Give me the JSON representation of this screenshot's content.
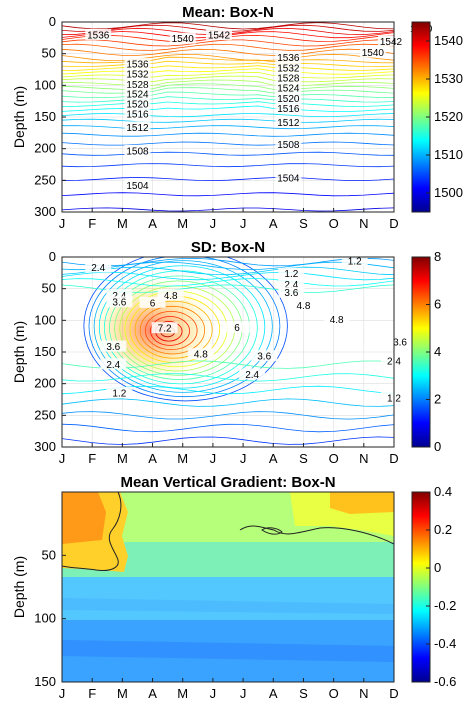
{
  "chart_data": [
    {
      "type": "contour",
      "title": "Mean: Box-N",
      "ylabel": "Depth (m)",
      "xlabel": "",
      "x_categories": [
        "J",
        "F",
        "M",
        "A",
        "M",
        "J",
        "J",
        "A",
        "S",
        "O",
        "N",
        "D"
      ],
      "ylim": [
        300,
        0
      ],
      "yticks": [
        "0",
        "50",
        "100",
        "150",
        "200",
        "250",
        "300"
      ],
      "colorbar": {
        "range": [
          1495,
          1545
        ],
        "ticks": [
          "1500",
          "1510",
          "1520",
          "1530",
          "1540"
        ]
      },
      "grid": true,
      "contour_labels": [
        {
          "text": "1536",
          "month": 1.2,
          "depth": 22
        },
        {
          "text": "1540",
          "month": 4.0,
          "depth": 28
        },
        {
          "text": "1542",
          "month": 5.2,
          "depth": 22
        },
        {
          "text": "1542",
          "month": 10.9,
          "depth": 32
        },
        {
          "text": "1540",
          "month": 10.3,
          "depth": 50
        },
        {
          "text": "1540",
          "month": 11.9,
          "depth": 12
        },
        {
          "text": "1536",
          "month": 2.5,
          "depth": 68
        },
        {
          "text": "1532",
          "month": 2.5,
          "depth": 84
        },
        {
          "text": "1528",
          "month": 2.5,
          "depth": 100
        },
        {
          "text": "1524",
          "month": 2.5,
          "depth": 115
        },
        {
          "text": "1520",
          "month": 2.5,
          "depth": 131
        },
        {
          "text": "1516",
          "month": 2.5,
          "depth": 147
        },
        {
          "text": "1512",
          "month": 2.5,
          "depth": 168
        },
        {
          "text": "1508",
          "month": 2.5,
          "depth": 205
        },
        {
          "text": "1504",
          "month": 2.5,
          "depth": 260
        },
        {
          "text": "1536",
          "month": 7.5,
          "depth": 58
        },
        {
          "text": "1532",
          "month": 7.5,
          "depth": 74
        },
        {
          "text": "1528",
          "month": 7.5,
          "depth": 90
        },
        {
          "text": "1524",
          "month": 7.5,
          "depth": 106
        },
        {
          "text": "1520",
          "month": 7.5,
          "depth": 122
        },
        {
          "text": "1516",
          "month": 7.5,
          "depth": 138
        },
        {
          "text": "1512",
          "month": 7.5,
          "depth": 160
        },
        {
          "text": "1508",
          "month": 7.5,
          "depth": 195
        },
        {
          "text": "1504",
          "month": 7.5,
          "depth": 248
        }
      ]
    },
    {
      "type": "contour",
      "title": "SD: Box-N",
      "ylabel": "Depth (m)",
      "xlabel": "",
      "x_categories": [
        "J",
        "F",
        "M",
        "A",
        "M",
        "J",
        "J",
        "A",
        "S",
        "O",
        "N",
        "D"
      ],
      "ylim": [
        300,
        0
      ],
      "yticks": [
        "0",
        "50",
        "100",
        "150",
        "200",
        "250",
        "300"
      ],
      "colorbar": {
        "range": [
          0,
          8
        ],
        "ticks": [
          "0",
          "2",
          "4",
          "6",
          "8"
        ]
      },
      "grid": true,
      "contour_labels": [
        {
          "text": "2.4",
          "month": 1.2,
          "depth": 18
        },
        {
          "text": "1.2",
          "month": 9.7,
          "depth": 8
        },
        {
          "text": "1.2",
          "month": 7.6,
          "depth": 28
        },
        {
          "text": "2.4",
          "month": 7.6,
          "depth": 45
        },
        {
          "text": "3.6",
          "month": 7.6,
          "depth": 58
        },
        {
          "text": "4.8",
          "month": 3.6,
          "depth": 62
        },
        {
          "text": "2.4",
          "month": 1.9,
          "depth": 62
        },
        {
          "text": "3.6",
          "month": 1.9,
          "depth": 73
        },
        {
          "text": "6",
          "month": 3.0,
          "depth": 74
        },
        {
          "text": "4.8",
          "month": 8.0,
          "depth": 78
        },
        {
          "text": "4.8",
          "month": 9.1,
          "depth": 100
        },
        {
          "text": "7.2",
          "month": 3.4,
          "depth": 114
        },
        {
          "text": "6",
          "month": 5.8,
          "depth": 113
        },
        {
          "text": "3.6",
          "month": 1.7,
          "depth": 143
        },
        {
          "text": "4.8",
          "month": 4.6,
          "depth": 155
        },
        {
          "text": "3.6",
          "month": 6.7,
          "depth": 158
        },
        {
          "text": "3.6",
          "month": 11.2,
          "depth": 136
        },
        {
          "text": "2.4",
          "month": 1.7,
          "depth": 171
        },
        {
          "text": "2.4",
          "month": 6.3,
          "depth": 187
        },
        {
          "text": "2.4",
          "month": 11.0,
          "depth": 166
        },
        {
          "text": "1.2",
          "month": 1.9,
          "depth": 216
        },
        {
          "text": "1.2",
          "month": 11.0,
          "depth": 224
        }
      ]
    },
    {
      "type": "heatmap",
      "title": "Mean Vertical Gradient: Box-N",
      "ylabel": "Depth (m)",
      "xlabel": "",
      "x_categories": [
        "J",
        "F",
        "M",
        "A",
        "M",
        "J",
        "J",
        "A",
        "S",
        "O",
        "N",
        "D"
      ],
      "ylim": [
        150,
        0
      ],
      "yticks": [
        "",
        "50",
        "100",
        "150"
      ],
      "colorbar": {
        "range": [
          -0.6,
          0.4
        ],
        "ticks": [
          "0.4",
          "0.2",
          "0",
          "-0.2",
          "-0.4",
          "-0.6"
        ]
      },
      "grid": false
    }
  ]
}
